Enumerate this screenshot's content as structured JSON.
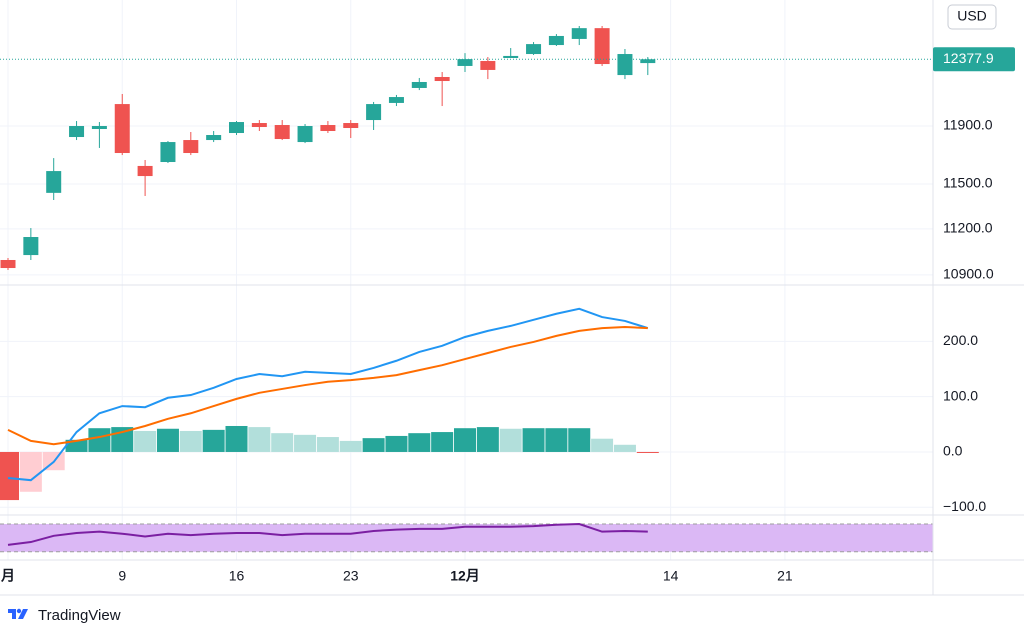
{
  "brand": "TradingView",
  "chart_data": [
    {
      "type": "candlestick",
      "currency": "USD",
      "log_scale": true,
      "grid": true,
      "up_color": "#26a69a",
      "down_color": "#ef5350",
      "categories": [
        "月",
        null,
        null,
        null,
        null,
        "9",
        null,
        null,
        null,
        null,
        "16",
        null,
        null,
        null,
        null,
        "23",
        null,
        null,
        null,
        null,
        "12月",
        null,
        null,
        null,
        null,
        null,
        null,
        null,
        null,
        "14",
        null,
        null,
        null,
        null,
        "21",
        null,
        null,
        null,
        null,
        null,
        null
      ],
      "open": [
        10996,
        11028,
        11440,
        11823,
        11879,
        12055,
        11623,
        11650,
        11802,
        11802,
        11851,
        11921,
        11907,
        11788,
        11907,
        11921,
        11942,
        12063,
        12170,
        12249,
        12329,
        12365,
        12387,
        12416,
        12482,
        12527,
        12607,
        12263,
        12350,
        null,
        null,
        null,
        null,
        null,
        null,
        null,
        null,
        null,
        null,
        null,
        null
      ],
      "high": [
        11009,
        11205,
        11677,
        11935,
        11928,
        12127,
        11664,
        11795,
        11858,
        11865,
        11935,
        11942,
        11942,
        11914,
        11935,
        11942,
        12070,
        12120,
        12242,
        12285,
        12423,
        12394,
        12460,
        12504,
        12563,
        12623,
        12623,
        12453,
        12394,
        null,
        null,
        null,
        null,
        null,
        null,
        null,
        null,
        null,
        null,
        null,
        null
      ],
      "low": [
        10931,
        10996,
        11392,
        11802,
        11747,
        11698,
        11419,
        11643,
        11698,
        11788,
        11837,
        11865,
        11802,
        11781,
        11851,
        11816,
        11872,
        12041,
        12155,
        12041,
        12285,
        12234,
        12387,
        12409,
        12475,
        12482,
        12329,
        12234,
        12263,
        null,
        null,
        null,
        null,
        null,
        null,
        null,
        null,
        null,
        null,
        null,
        null
      ],
      "close": [
        10944,
        11146,
        11588,
        11900,
        11900,
        11712,
        11554,
        11788,
        11712,
        11837,
        11928,
        11893,
        11809,
        11900,
        11865,
        11886,
        12055,
        12105,
        12213,
        12220,
        12379,
        12300,
        12402,
        12489,
        12549,
        12607,
        12343,
        12416,
        12377.9,
        null,
        null,
        null,
        null,
        null,
        null,
        null,
        null,
        null,
        null,
        null,
        null
      ],
      "ylim": [
        10835,
        12818
      ],
      "yticks": [
        {
          "value": 11900,
          "label": "11900.0"
        },
        {
          "value": 11500,
          "label": "11500.0"
        },
        {
          "value": 11200,
          "label": "11200.0"
        },
        {
          "value": 10900,
          "label": "10900.0"
        }
      ]
    },
    {
      "type": "macd",
      "grid": true,
      "hist_colors": [
        "#26a69a",
        "#b2dfdb",
        "#ef5350",
        "#ffcdd2"
      ],
      "series": [
        {
          "name": "MACD",
          "color": "#2196f3",
          "values": [
            -47,
            -51,
            -18,
            36,
            70,
            83,
            81,
            98,
            103,
            116,
            132,
            141,
            137,
            145,
            143,
            141,
            152,
            165,
            181,
            192,
            208,
            219,
            228,
            239,
            250,
            259,
            244,
            237,
            224
          ]
        },
        {
          "name": "Signal",
          "color": "#ff6d00",
          "values": [
            40,
            20,
            14,
            20,
            27,
            36,
            47,
            60,
            70,
            83,
            96,
            107,
            114,
            121,
            127,
            130,
            134,
            139,
            148,
            157,
            168,
            179,
            190,
            199,
            210,
            219,
            224,
            226,
            224
          ]
        },
        {
          "name": "Histogram",
          "values": [
            -87,
            -72,
            -33,
            22,
            43,
            45,
            38,
            42,
            38,
            40,
            47,
            45,
            34,
            31,
            27,
            20,
            25,
            29,
            34,
            36,
            43,
            45,
            42,
            43,
            43,
            43,
            24,
            13,
            -1
          ]
        }
      ],
      "ylim": [
        -114,
        302
      ],
      "yticks": [
        {
          "value": 200,
          "label": "200.0"
        },
        {
          "value": 100,
          "label": "100.0"
        },
        {
          "value": 0,
          "label": "0.0"
        },
        {
          "value": -100,
          "label": "−100.0"
        }
      ]
    },
    {
      "type": "rsi",
      "color": "#7b1fa2",
      "band": [
        30,
        70
      ],
      "band_color": "#dbb8f5",
      "values": [
        40,
        44,
        53,
        57,
        59,
        56,
        52,
        56,
        54,
        56,
        57,
        57,
        54,
        56,
        56,
        56,
        60,
        62,
        63,
        63,
        66,
        66,
        66,
        67,
        69,
        70,
        59,
        60,
        59
      ],
      "ylim": [
        21,
        83
      ]
    }
  ]
}
